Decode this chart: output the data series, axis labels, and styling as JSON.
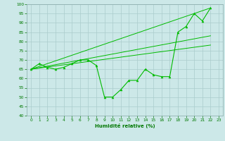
{
  "title": "",
  "xlabel": "Humidité relative (%)",
  "bg_color": "#cce8e8",
  "grid_color": "#aacccc",
  "line_color": "#00bb00",
  "xlim": [
    -0.5,
    23.5
  ],
  "ylim": [
    40,
    100
  ],
  "yticks": [
    40,
    45,
    50,
    55,
    60,
    65,
    70,
    75,
    80,
    85,
    90,
    95,
    100
  ],
  "xticks": [
    0,
    1,
    2,
    3,
    4,
    5,
    6,
    7,
    8,
    9,
    10,
    11,
    12,
    13,
    14,
    15,
    16,
    17,
    18,
    19,
    20,
    21,
    22,
    23
  ],
  "series1": {
    "x": [
      0,
      1,
      2,
      3,
      4,
      5,
      6,
      7,
      8,
      9,
      10,
      11,
      12,
      13,
      14,
      15,
      16,
      17,
      18,
      19,
      20,
      21,
      22
    ],
    "y": [
      65,
      68,
      66,
      65,
      66,
      68,
      70,
      70,
      67,
      50,
      50,
      54,
      59,
      59,
      65,
      62,
      61,
      61,
      85,
      88,
      95,
      91,
      98
    ]
  },
  "trend1": {
    "x": [
      0,
      22
    ],
    "y": [
      65,
      98
    ]
  },
  "trend2": {
    "x": [
      0,
      22
    ],
    "y": [
      65,
      83
    ]
  },
  "trend3": {
    "x": [
      0,
      22
    ],
    "y": [
      65,
      78
    ]
  }
}
